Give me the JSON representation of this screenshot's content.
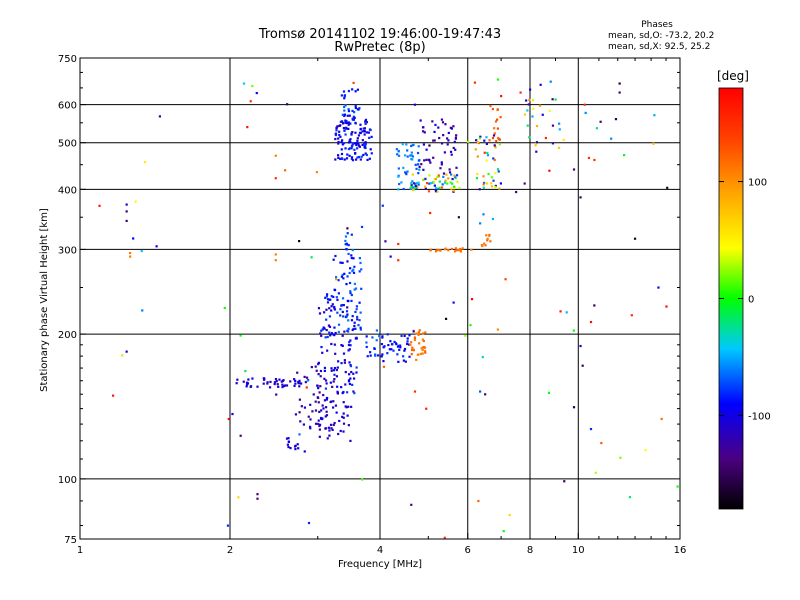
{
  "chart_data": {
    "type": "scatter",
    "title": "Tromsø 20141102 19:46:00-19:47:43",
    "subtitle": "RwPretec (8p)",
    "xlabel": "Frequency [MHz]",
    "ylabel": "Stationary phase Virtual Height [km]",
    "x_scale": "log",
    "y_scale": "log",
    "xlim": [
      1,
      16
    ],
    "ylim": [
      75,
      750
    ],
    "x_ticks": [
      1,
      2,
      4,
      6,
      8,
      10,
      16
    ],
    "y_ticks": [
      75,
      100,
      200,
      300,
      400,
      500,
      600,
      750
    ],
    "grid": true,
    "stats": {
      "header": "Phases",
      "o_line": "mean, sd,O: -73.2, 20.2",
      "x_line": "mean, sd,X:  92.5, 25.2"
    },
    "colorbar": {
      "label": "[deg]",
      "range": [
        -180,
        180
      ],
      "ticks": [
        100,
        0,
        -100
      ],
      "tick_labels": [
        "100",
        "0",
        "-100"
      ]
    },
    "clusters": [
      {
        "x": [
          2.05,
          2.8
        ],
        "y": [
          155,
          162
        ],
        "phase": [
          -125,
          -90
        ],
        "n": 45
      },
      {
        "x": [
          2.6,
          2.75
        ],
        "y": [
          115,
          122
        ],
        "phase": [
          -110,
          -85
        ],
        "n": 12
      },
      {
        "x": [
          2.7,
          3.3
        ],
        "y": [
          125,
          175
        ],
        "phase": [
          -140,
          -100
        ],
        "n": 60
      },
      {
        "x": [
          3.0,
          3.5
        ],
        "y": [
          120,
          150
        ],
        "phase": [
          -120,
          -95
        ],
        "n": 40
      },
      {
        "x": [
          3.0,
          3.6
        ],
        "y": [
          150,
          240
        ],
        "phase": [
          -125,
          -70
        ],
        "n": 120
      },
      {
        "x": [
          3.2,
          3.7
        ],
        "y": [
          200,
          300
        ],
        "phase": [
          -95,
          -60
        ],
        "n": 60
      },
      {
        "x": [
          3.4,
          3.55
        ],
        "y": [
          280,
          330
        ],
        "phase": [
          -100,
          -60
        ],
        "n": 15
      },
      {
        "x": [
          3.75,
          4.0
        ],
        "y": [
          175,
          205
        ],
        "phase": [
          -90,
          -60
        ],
        "n": 15
      },
      {
        "x": [
          4.0,
          4.6
        ],
        "y": [
          175,
          200
        ],
        "phase": [
          -105,
          -75
        ],
        "n": 40
      },
      {
        "x": [
          4.6,
          4.95
        ],
        "y": [
          175,
          205
        ],
        "phase": [
          105,
          125
        ],
        "n": 35
      },
      {
        "x": [
          3.25,
          3.85
        ],
        "y": [
          460,
          560
        ],
        "phase": [
          -115,
          -75
        ],
        "n": 130
      },
      {
        "x": [
          3.35,
          3.65
        ],
        "y": [
          560,
          650
        ],
        "phase": [
          -95,
          -65
        ],
        "n": 30
      },
      {
        "x": [
          4.3,
          4.8
        ],
        "y": [
          400,
          500
        ],
        "phase": [
          -75,
          -45
        ],
        "n": 50
      },
      {
        "x": [
          4.6,
          5.8
        ],
        "y": [
          395,
          430
        ],
        "phase": [
          -135,
          145
        ],
        "n": 60
      },
      {
        "x": [
          4.8,
          5.8
        ],
        "y": [
          430,
          560
        ],
        "phase": [
          -140,
          -100
        ],
        "n": 50
      },
      {
        "x": [
          5.0,
          6.1
        ],
        "y": [
          297,
          302
        ],
        "phase": [
          105,
          120
        ],
        "n": 20
      },
      {
        "x": [
          6.4,
          6.7
        ],
        "y": [
          305,
          322
        ],
        "phase": [
          105,
          120
        ],
        "n": 10
      },
      {
        "x": [
          6.2,
          7.0
        ],
        "y": [
          400,
          520
        ],
        "phase": [
          -140,
          150
        ],
        "n": 40
      },
      {
        "x": [
          6.6,
          7.0
        ],
        "y": [
          500,
          600
        ],
        "phase": [
          110,
          135
        ],
        "n": 15
      },
      {
        "x": [
          7.8,
          9.2
        ],
        "y": [
          460,
          620
        ],
        "phase": [
          -150,
          110
        ],
        "n": 25
      },
      {
        "x": [
          1.0,
          16.0
        ],
        "y": [
          75,
          700
        ],
        "phase": [
          -180,
          180
        ],
        "n": 90
      }
    ],
    "points": [
      {
        "x": 1.24,
        "y": 372,
        "phase": -110
      },
      {
        "x": 1.24,
        "y": 360,
        "phase": -140
      },
      {
        "x": 1.24,
        "y": 344,
        "phase": -140
      },
      {
        "x": 1.26,
        "y": 295,
        "phase": 110
      },
      {
        "x": 1.26,
        "y": 290,
        "phase": 110
      },
      {
        "x": 1.24,
        "y": 184,
        "phase": -115
      },
      {
        "x": 2.2,
        "y": 610,
        "phase": 150
      },
      {
        "x": 2.47,
        "y": 470,
        "phase": 110
      },
      {
        "x": 2.47,
        "y": 422,
        "phase": 150
      },
      {
        "x": 2.47,
        "y": 293,
        "phase": 110
      },
      {
        "x": 2.47,
        "y": 285,
        "phase": 110
      },
      {
        "x": 2.27,
        "y": 93,
        "phase": -140
      },
      {
        "x": 2.27,
        "y": 91,
        "phase": -140
      },
      {
        "x": 2.1,
        "y": 123,
        "phase": -140
      },
      {
        "x": 1.98,
        "y": 80,
        "phase": -80
      },
      {
        "x": 2.88,
        "y": 81,
        "phase": -80
      },
      {
        "x": 2.85,
        "y": 155,
        "phase": 150
      },
      {
        "x": 2.9,
        "y": 133,
        "phase": -120
      },
      {
        "x": 4.7,
        "y": 152,
        "phase": 150
      },
      {
        "x": 4.95,
        "y": 140,
        "phase": 160
      },
      {
        "x": 6.3,
        "y": 90,
        "phase": 120
      },
      {
        "x": 6.35,
        "y": 152,
        "phase": -70
      },
      {
        "x": 6.5,
        "y": 150,
        "phase": -140
      },
      {
        "x": 9.8,
        "y": 141,
        "phase": -160
      },
      {
        "x": 10.6,
        "y": 127,
        "phase": -80
      },
      {
        "x": 10.1,
        "y": 189,
        "phase": -110
      },
      {
        "x": 10.2,
        "y": 172,
        "phase": -150
      },
      {
        "x": 10.6,
        "y": 212,
        "phase": 170
      },
      {
        "x": 12.8,
        "y": 219,
        "phase": 150
      },
      {
        "x": 12.1,
        "y": 664,
        "phase": -160
      },
      {
        "x": 12.1,
        "y": 636,
        "phase": -140
      },
      {
        "x": 10.1,
        "y": 385,
        "phase": -150
      },
      {
        "x": 10.3,
        "y": 600,
        "phase": 150
      },
      {
        "x": 10.5,
        "y": 465,
        "phase": 150
      },
      {
        "x": 9.8,
        "y": 440,
        "phase": -140
      },
      {
        "x": 8.8,
        "y": 670,
        "phase": -60
      },
      {
        "x": 8.4,
        "y": 660,
        "phase": -100
      },
      {
        "x": 6.2,
        "y": 667,
        "phase": 150
      },
      {
        "x": 8.0,
        "y": 645,
        "phase": -110
      },
      {
        "x": 4.7,
        "y": 600,
        "phase": -100
      },
      {
        "x": 4.2,
        "y": 290,
        "phase": -100
      },
      {
        "x": 4.35,
        "y": 285,
        "phase": 150
      },
      {
        "x": 4.35,
        "y": 308,
        "phase": 150
      },
      {
        "x": 4.1,
        "y": 312,
        "phase": -130
      },
      {
        "x": 4.05,
        "y": 370,
        "phase": -80
      },
      {
        "x": 6.45,
        "y": 355,
        "phase": -60
      },
      {
        "x": 6.35,
        "y": 340,
        "phase": -60
      },
      {
        "x": 7.5,
        "y": 395,
        "phase": -140
      }
    ]
  }
}
